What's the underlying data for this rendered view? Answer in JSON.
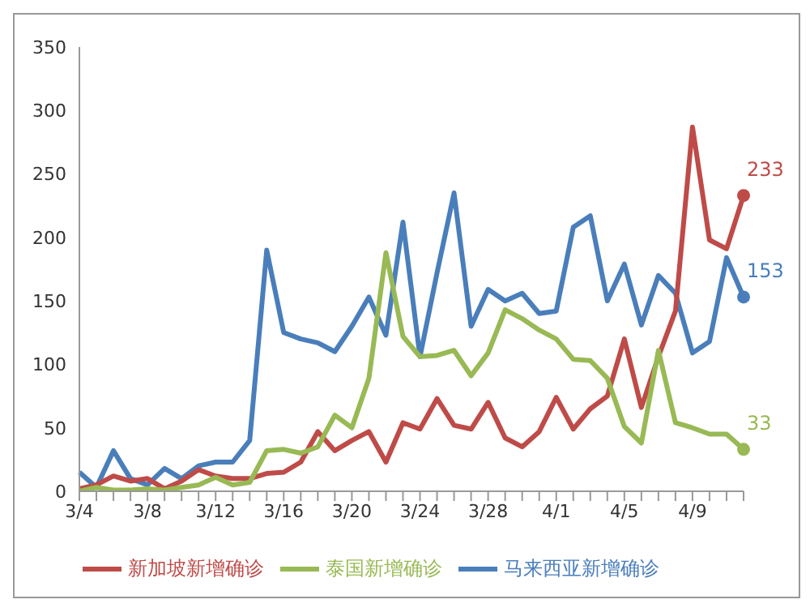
{
  "chart_data": {
    "type": "line",
    "categories": [
      "3/4",
      null,
      null,
      null,
      "3/8",
      null,
      null,
      null,
      "3/12",
      null,
      null,
      null,
      "3/16",
      null,
      null,
      null,
      "3/20",
      null,
      null,
      null,
      "3/24",
      null,
      null,
      null,
      "3/28",
      null,
      null,
      null,
      "4/1",
      null,
      null,
      null,
      "4/5",
      null,
      null,
      null,
      "4/9",
      null,
      null,
      null
    ],
    "ylim": [
      0,
      350
    ],
    "yticks": [
      0,
      50,
      100,
      150,
      200,
      250,
      300,
      350
    ],
    "grid": false,
    "legend": "bottom",
    "line_style": "solid",
    "series": [
      {
        "name": "马来西亚新增确诊",
        "color": "#4a7ebb",
        "values": [
          15,
          3,
          32,
          10,
          5,
          18,
          10,
          20,
          23,
          23,
          40,
          190,
          125,
          120,
          117,
          110,
          130,
          153,
          123,
          212,
          106,
          172,
          235,
          130,
          159,
          150,
          156,
          140,
          142,
          208,
          217,
          150,
          179,
          131,
          170,
          156,
          109,
          118,
          184,
          153
        ],
        "value_labels": [
          null,
          null,
          null,
          null,
          null,
          null,
          null,
          null,
          null,
          null,
          null,
          null,
          null,
          null,
          null,
          null,
          null,
          null,
          null,
          null,
          null,
          null,
          null,
          null,
          null,
          null,
          null,
          null,
          null,
          null,
          null,
          null,
          null,
          null,
          null,
          null,
          null,
          null,
          null,
          "153"
        ]
      },
      {
        "name": "新加坡新增确诊",
        "color": "#be4b48",
        "values": [
          2,
          5,
          12,
          8,
          10,
          2,
          8,
          17,
          12,
          10,
          10,
          14,
          15,
          23,
          47,
          32,
          40,
          47,
          23,
          54,
          49,
          73,
          52,
          49,
          70,
          42,
          35,
          47,
          74,
          49,
          65,
          75,
          120,
          66,
          106,
          142,
          287,
          198,
          191,
          233
        ],
        "value_labels": [
          null,
          null,
          null,
          null,
          null,
          null,
          null,
          null,
          null,
          null,
          null,
          null,
          null,
          null,
          null,
          null,
          null,
          null,
          null,
          null,
          null,
          null,
          null,
          null,
          null,
          null,
          null,
          null,
          null,
          null,
          null,
          null,
          null,
          null,
          null,
          null,
          null,
          null,
          null,
          "233"
        ]
      },
      {
        "name": "泰国新增确诊",
        "color": "#98b954",
        "values": [
          0,
          3,
          1,
          1,
          2,
          1,
          3,
          5,
          11,
          5,
          7,
          32,
          33,
          30,
          35,
          60,
          50,
          89,
          188,
          122,
          106,
          107,
          111,
          91,
          109,
          143,
          136,
          127,
          120,
          104,
          103,
          89,
          51,
          38,
          111,
          54,
          50,
          45,
          45,
          33
        ],
        "value_labels": [
          null,
          null,
          null,
          null,
          null,
          null,
          null,
          null,
          null,
          null,
          null,
          null,
          null,
          null,
          null,
          null,
          null,
          null,
          null,
          null,
          null,
          null,
          null,
          null,
          null,
          null,
          null,
          null,
          null,
          null,
          null,
          null,
          null,
          null,
          null,
          null,
          null,
          null,
          null,
          "33"
        ]
      }
    ]
  }
}
